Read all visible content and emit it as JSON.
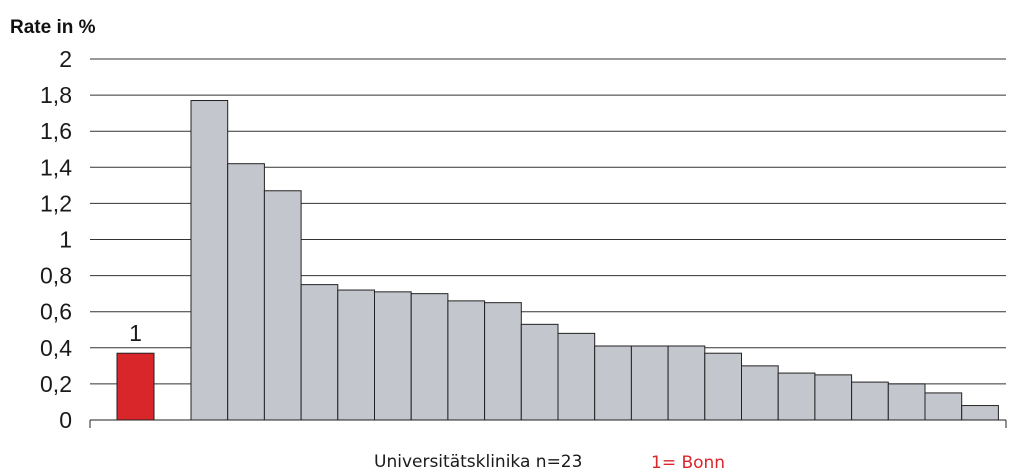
{
  "chart_data": {
    "type": "bar",
    "ylabel": "Rate in %",
    "xlabel": "Universitätsklinika n=23",
    "legend_note": "1= Bonn",
    "ylim": [
      0,
      2
    ],
    "yticks": [
      "0",
      "0,2",
      "0,4",
      "0,6",
      "0,8",
      "1",
      "1,2",
      "1,4",
      "1,6",
      "1,8",
      "2"
    ],
    "grid": true,
    "highlight": {
      "label": "1",
      "value": 0.37,
      "color": "#d9262b"
    },
    "bar_color": "#c3c6cd",
    "values": [
      1.77,
      1.42,
      1.27,
      0.75,
      0.72,
      0.71,
      0.7,
      0.66,
      0.65,
      0.53,
      0.48,
      0.41,
      0.41,
      0.41,
      0.37,
      0.3,
      0.26,
      0.25,
      0.21,
      0.2,
      0.15,
      0.08
    ]
  }
}
